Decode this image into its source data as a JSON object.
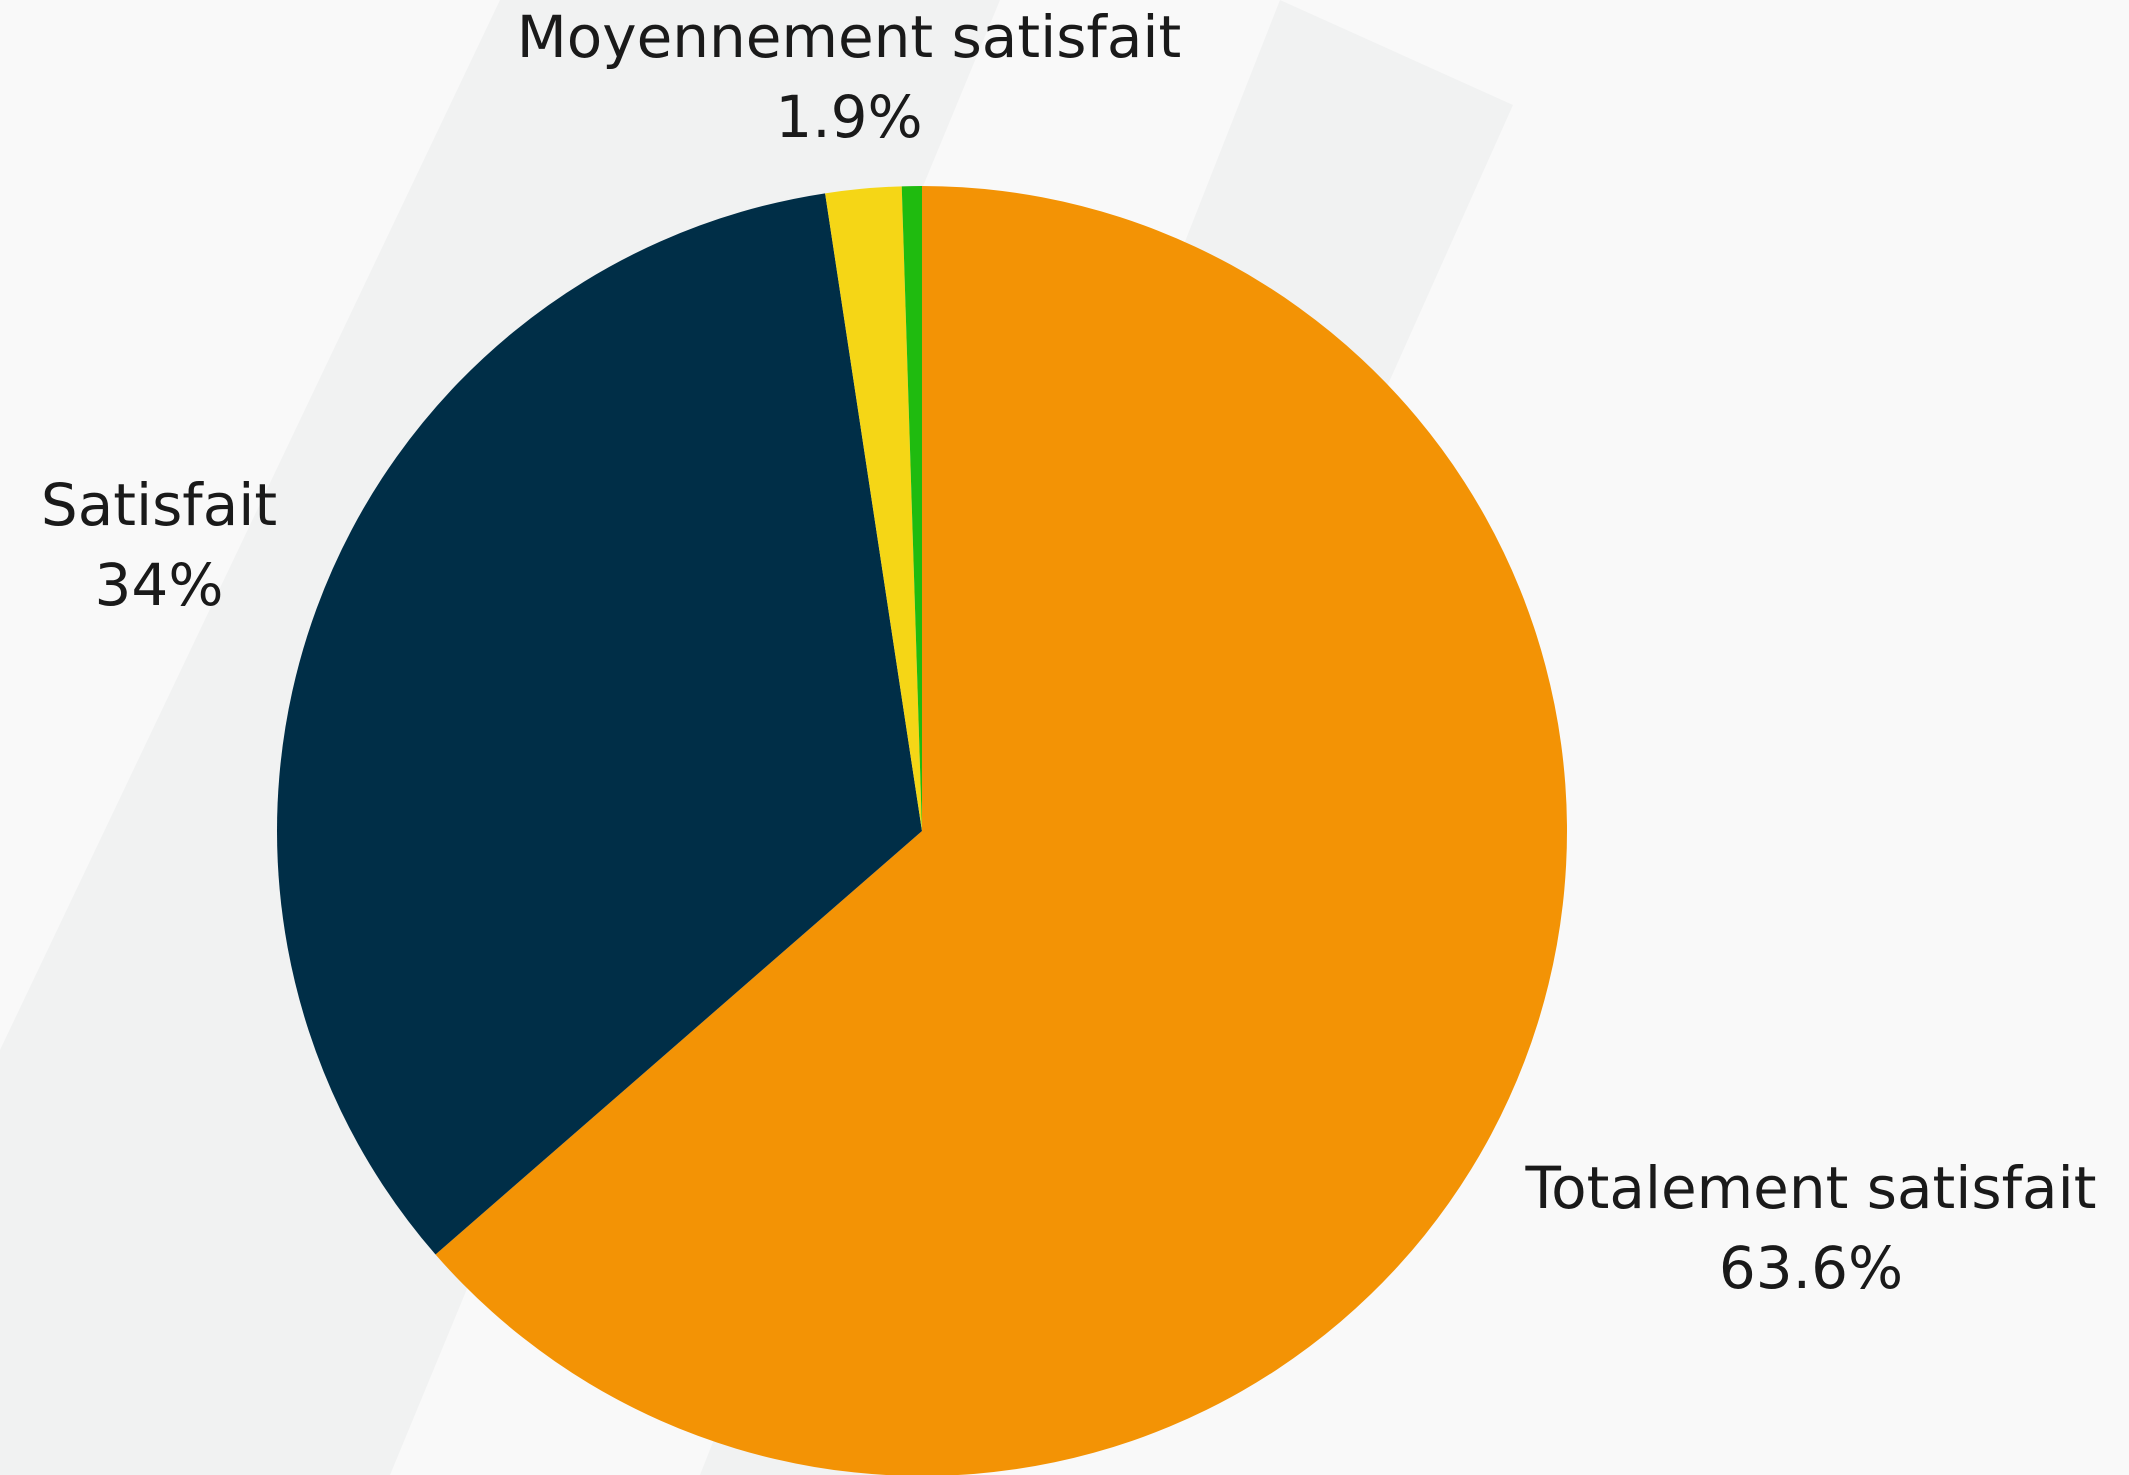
{
  "chart_data": {
    "type": "pie",
    "categories": [
      "Totalement satisfait",
      "Satisfait",
      "Moyennement satisfait",
      null
    ],
    "values": [
      63.6,
      34,
      1.9,
      0.5
    ],
    "value_labels": [
      "63.6%",
      "34%",
      "1.9%",
      null
    ],
    "colors": [
      "#f39305",
      "#002e47",
      "#f5d616",
      "#1fbb0f"
    ],
    "start_angle": 0,
    "direction": "clockwise"
  }
}
